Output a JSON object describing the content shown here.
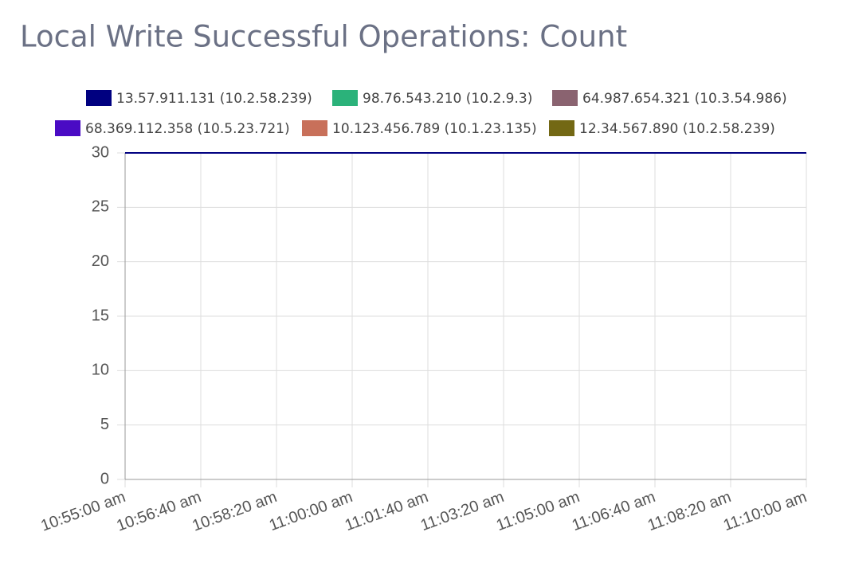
{
  "chart_data": {
    "type": "line",
    "title": "Local Write Successful Operations: Count",
    "categories": [
      "10:55:00 am",
      "10:56:40 am",
      "10:58:20 am",
      "11:00:00 am",
      "11:01:40 am",
      "11:03:20 am",
      "11:05:00 am",
      "11:06:40 am",
      "11:08:20 am",
      "11:10:00 am"
    ],
    "series": [
      {
        "name": "13.57.911.131 (10.2.58.239)",
        "color": "#000080",
        "values": [
          30,
          30,
          30,
          30,
          30,
          30,
          30,
          30,
          30,
          30
        ]
      },
      {
        "name": "98.76.543.210 (10.2.9.3)",
        "color": "#2bb27a",
        "values": [
          30,
          30,
          30,
          30,
          30,
          30,
          30,
          30,
          30,
          30
        ]
      },
      {
        "name": "64.987.654.321 (10.3.54.986)",
        "color": "#8a6370",
        "values": [
          30,
          30,
          30,
          30,
          30,
          30,
          30,
          30,
          30,
          30
        ]
      },
      {
        "name": "68.369.112.358 (10.5.23.721)",
        "color": "#4a0bc4",
        "values": [
          30,
          30,
          30,
          30,
          30,
          30,
          30,
          30,
          30,
          30
        ]
      },
      {
        "name": "10.123.456.789 (10.1.23.135)",
        "color": "#c8705a",
        "values": [
          30,
          30,
          30,
          30,
          30,
          30,
          30,
          30,
          30,
          30
        ]
      },
      {
        "name": "12.34.567.890 (10.2.58.239)",
        "color": "#736814",
        "values": [
          30,
          30,
          30,
          30,
          30,
          30,
          30,
          30,
          30,
          30
        ]
      }
    ],
    "ylim": [
      0,
      30
    ],
    "yticks": [
      0,
      5,
      10,
      15,
      20,
      25,
      30
    ],
    "grid": true
  }
}
